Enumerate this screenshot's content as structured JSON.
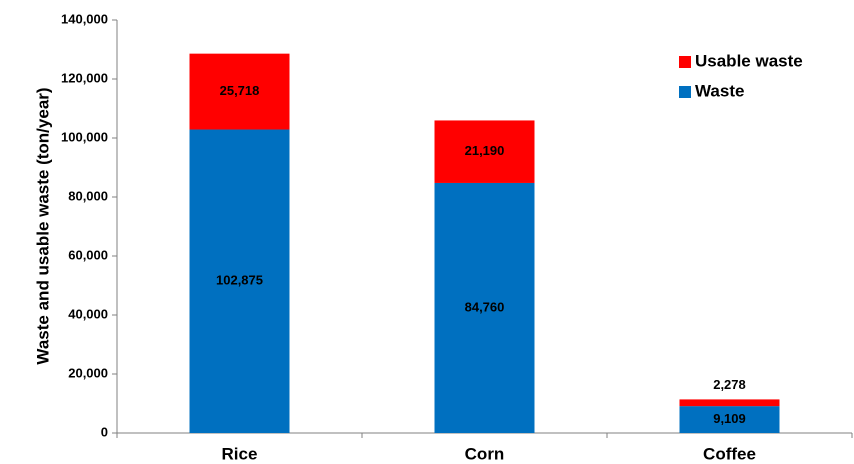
{
  "chart_data": {
    "type": "bar",
    "stacked": true,
    "categories": [
      "Rice",
      "Corn",
      "Coffee"
    ],
    "series": [
      {
        "name": "Waste",
        "values": [
          102875,
          84760,
          9109
        ],
        "labels": [
          "102,875",
          "84,760",
          "9,109"
        ],
        "color": "#0070C0"
      },
      {
        "name": "Usable waste",
        "values": [
          25718,
          21190,
          2278
        ],
        "labels": [
          "25,718",
          "21,190",
          "2,278"
        ],
        "color": "#FF0000"
      }
    ],
    "ylabel": "Waste and usable waste (ton/year)",
    "xlabel": "",
    "ylim": [
      0,
      140000
    ],
    "yticks": [
      0,
      20000,
      40000,
      60000,
      80000,
      100000,
      120000,
      140000
    ],
    "ytick_labels": [
      "0",
      "20,000",
      "40,000",
      "60,000",
      "80,000",
      "100,000",
      "120,000",
      "140,000"
    ],
    "legend": {
      "placement": "top-right",
      "order": [
        "Usable waste",
        "Waste"
      ]
    },
    "grid": false
  }
}
